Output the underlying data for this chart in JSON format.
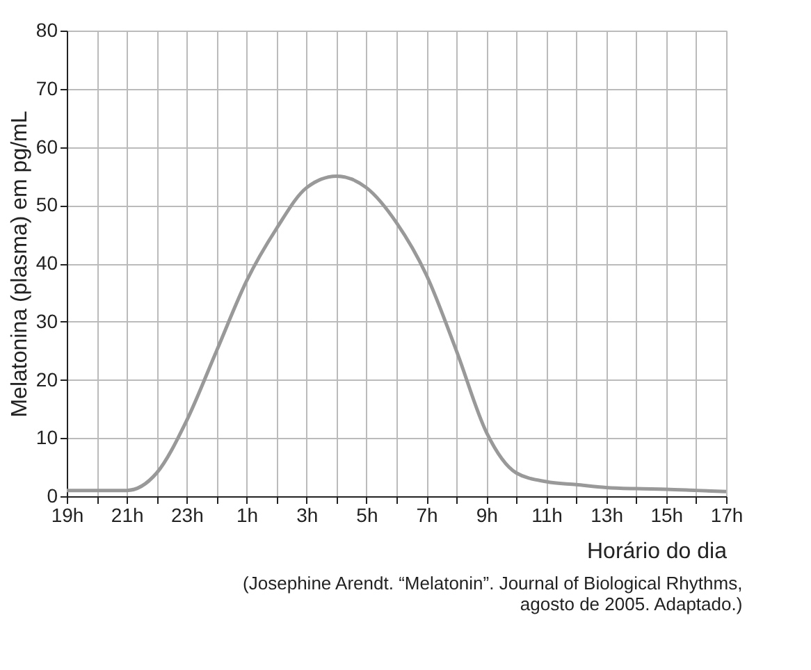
{
  "chart_data": {
    "type": "line",
    "xlabel": "Horário do dia",
    "ylabel": "Melatonina (plasma) em pg/mL",
    "annotations": [
      "(Josephine Arendt. “Melatonin”. Journal of Biological Rhythms,",
      "agosto de 2005. Adaptado.)"
    ],
    "categories": [
      "19h",
      null,
      "21h",
      null,
      "23h",
      null,
      "1h",
      null,
      "3h",
      null,
      "5h",
      null,
      "7h",
      null,
      "9h",
      null,
      "11h",
      null,
      "13h",
      null,
      "15h",
      null,
      "17h"
    ],
    "series": [
      {
        "color": "#999999",
        "values": [
          1,
          1,
          1,
          4,
          13,
          25,
          37,
          46,
          53,
          55,
          53,
          47,
          38,
          25,
          11,
          4,
          2.5,
          2,
          1.5,
          1.3,
          1.2,
          1,
          0.8
        ]
      }
    ],
    "ylim": [
      0,
      80
    ],
    "yticks": [
      0,
      10,
      20,
      30,
      40,
      50,
      60,
      70,
      80
    ],
    "grid": true,
    "line_style": "solid",
    "marker": "none"
  }
}
